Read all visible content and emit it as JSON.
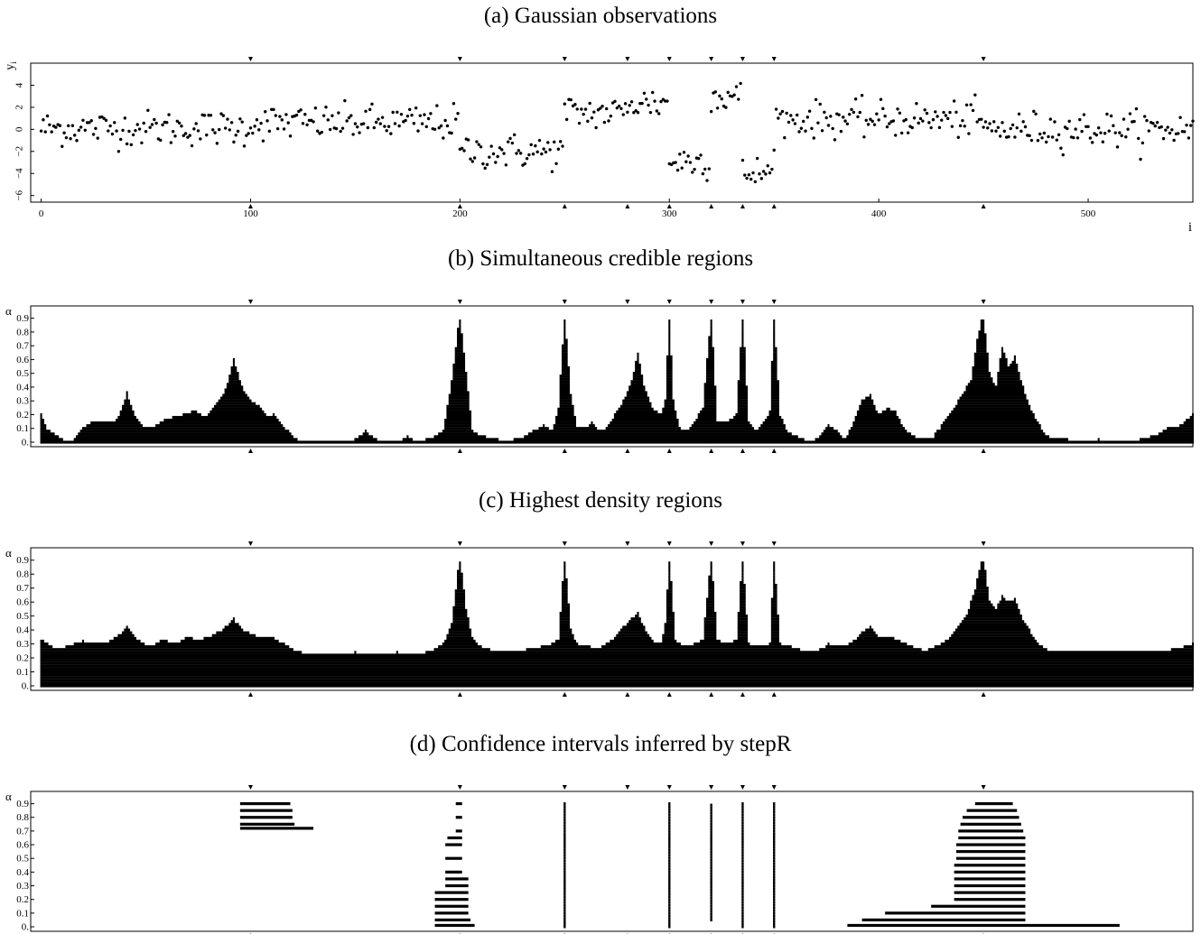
{
  "panels": {
    "a": {
      "title": "(a) Gaussian observations"
    },
    "b": {
      "title": "(b) Simultaneous credible regions"
    },
    "c": {
      "title": "(c) Highest density regions"
    },
    "d": {
      "title": "(d) Confidence intervals inferred by stepR"
    }
  },
  "chart_data": [
    {
      "id": "a",
      "type": "scatter",
      "title": "(a) Gaussian observations",
      "xlabel": "i",
      "ylabel": "y_i",
      "xlim": [
        -5,
        550
      ],
      "ylim": [
        -6.6,
        6.0
      ],
      "x_ticks": [
        0,
        100,
        200,
        300,
        400,
        500
      ],
      "y_ticks": [
        -6,
        -4,
        -2,
        0,
        2,
        4
      ],
      "change_points": [
        100,
        200,
        250,
        280,
        300,
        320,
        335,
        350,
        450
      ],
      "segments": [
        {
          "from": 0,
          "to": 100,
          "mean": 0.1
        },
        {
          "from": 100,
          "to": 200,
          "mean": 0.6
        },
        {
          "from": 200,
          "to": 250,
          "mean": -2.0
        },
        {
          "from": 250,
          "to": 280,
          "mean": 1.5
        },
        {
          "from": 280,
          "to": 300,
          "mean": 2.4
        },
        {
          "from": 300,
          "to": 320,
          "mean": -2.9
        },
        {
          "from": 320,
          "to": 335,
          "mean": 3.0
        },
        {
          "from": 335,
          "to": 350,
          "mean": -4.0
        },
        {
          "from": 350,
          "to": 450,
          "mean": 0.9
        },
        {
          "from": 450,
          "to": 551,
          "mean": 0.0
        }
      ],
      "noise_sd": 0.8,
      "n_points": 551
    },
    {
      "id": "b",
      "type": "bar",
      "title": "(b) Simultaneous credible regions",
      "xlabel": "",
      "ylabel": "α",
      "xlim": [
        -5,
        550
      ],
      "y_ticks": [
        0,
        0.1,
        0.2,
        0.3,
        0.4,
        0.5,
        0.6,
        0.7,
        0.8,
        0.9
      ],
      "change_points": [
        100,
        200,
        250,
        280,
        300,
        320,
        335,
        350,
        450
      ],
      "profile": [
        [
          0,
          0.2
        ],
        [
          3,
          0.1
        ],
        [
          7,
          0.05
        ],
        [
          10,
          0.02
        ],
        [
          15,
          0
        ],
        [
          20,
          0.1
        ],
        [
          25,
          0.15
        ],
        [
          30,
          0.15
        ],
        [
          35,
          0.15
        ],
        [
          38,
          0.22
        ],
        [
          41,
          0.36
        ],
        [
          44,
          0.22
        ],
        [
          48,
          0.12
        ],
        [
          53,
          0.1
        ],
        [
          57,
          0.15
        ],
        [
          63,
          0.18
        ],
        [
          68,
          0.2
        ],
        [
          73,
          0.23
        ],
        [
          78,
          0.18
        ],
        [
          83,
          0.27
        ],
        [
          88,
          0.38
        ],
        [
          92,
          0.6
        ],
        [
          96,
          0.4
        ],
        [
          100,
          0.3
        ],
        [
          104,
          0.26
        ],
        [
          108,
          0.18
        ],
        [
          111,
          0.2
        ],
        [
          115,
          0.12
        ],
        [
          118,
          0.08
        ],
        [
          122,
          0.02
        ],
        [
          126,
          0
        ],
        [
          140,
          0
        ],
        [
          150,
          0.02
        ],
        [
          155,
          0.08
        ],
        [
          160,
          0.02
        ],
        [
          170,
          0
        ],
        [
          175,
          0.04
        ],
        [
          180,
          0
        ],
        [
          188,
          0.04
        ],
        [
          192,
          0.08
        ],
        [
          196,
          0.45
        ],
        [
          200,
          0.95
        ],
        [
          203,
          0.5
        ],
        [
          206,
          0.08
        ],
        [
          210,
          0.05
        ],
        [
          214,
          0.03
        ],
        [
          218,
          0.02
        ],
        [
          222,
          0
        ],
        [
          226,
          0.02
        ],
        [
          230,
          0.03
        ],
        [
          235,
          0.08
        ],
        [
          240,
          0.12
        ],
        [
          244,
          0.08
        ],
        [
          247,
          0.25
        ],
        [
          250,
          0.95
        ],
        [
          253,
          0.35
        ],
        [
          256,
          0.1
        ],
        [
          260,
          0.1
        ],
        [
          263,
          0.15
        ],
        [
          266,
          0.08
        ],
        [
          270,
          0.1
        ],
        [
          274,
          0.2
        ],
        [
          278,
          0.3
        ],
        [
          282,
          0.45
        ],
        [
          285,
          0.65
        ],
        [
          288,
          0.4
        ],
        [
          292,
          0.25
        ],
        [
          296,
          0.2
        ],
        [
          298,
          0.3
        ],
        [
          300,
          0.95
        ],
        [
          302,
          0.3
        ],
        [
          305,
          0.1
        ],
        [
          308,
          0.08
        ],
        [
          312,
          0.15
        ],
        [
          316,
          0.25
        ],
        [
          320,
          0.95
        ],
        [
          323,
          0.15
        ],
        [
          328,
          0.15
        ],
        [
          332,
          0.2
        ],
        [
          335,
          0.95
        ],
        [
          338,
          0.15
        ],
        [
          342,
          0.08
        ],
        [
          345,
          0.15
        ],
        [
          348,
          0.22
        ],
        [
          350,
          0.95
        ],
        [
          353,
          0.2
        ],
        [
          356,
          0.08
        ],
        [
          360,
          0.05
        ],
        [
          364,
          0.02
        ],
        [
          368,
          0
        ],
        [
          372,
          0.05
        ],
        [
          376,
          0.12
        ],
        [
          380,
          0.08
        ],
        [
          384,
          0.02
        ],
        [
          388,
          0.15
        ],
        [
          392,
          0.3
        ],
        [
          396,
          0.35
        ],
        [
          400,
          0.2
        ],
        [
          404,
          0.25
        ],
        [
          408,
          0.22
        ],
        [
          412,
          0.1
        ],
        [
          416,
          0.05
        ],
        [
          420,
          0.02
        ],
        [
          425,
          0.02
        ],
        [
          430,
          0.12
        ],
        [
          436,
          0.25
        ],
        [
          440,
          0.35
        ],
        [
          444,
          0.45
        ],
        [
          447,
          0.75
        ],
        [
          450,
          0.95
        ],
        [
          453,
          0.5
        ],
        [
          456,
          0.4
        ],
        [
          459,
          0.7
        ],
        [
          462,
          0.55
        ],
        [
          465,
          0.62
        ],
        [
          468,
          0.45
        ],
        [
          471,
          0.3
        ],
        [
          474,
          0.2
        ],
        [
          477,
          0.12
        ],
        [
          480,
          0.05
        ],
        [
          484,
          0.02
        ],
        [
          490,
          0.02
        ],
        [
          495,
          0
        ],
        [
          505,
          0.02
        ],
        [
          510,
          0
        ],
        [
          525,
          0.02
        ],
        [
          532,
          0.05
        ],
        [
          538,
          0.1
        ],
        [
          544,
          0.12
        ],
        [
          550,
          0.2
        ]
      ]
    },
    {
      "id": "c",
      "type": "bar",
      "title": "(c) Highest density regions",
      "xlabel": "",
      "ylabel": "α",
      "xlim": [
        -5,
        550
      ],
      "y_ticks": [
        0,
        0.1,
        0.2,
        0.3,
        0.4,
        0.5,
        0.6,
        0.7,
        0.8,
        0.9
      ],
      "change_points": [
        100,
        200,
        250,
        280,
        300,
        320,
        335,
        350,
        450
      ],
      "base_level": 0.23,
      "profile": [
        [
          0,
          0.33
        ],
        [
          3,
          0.3
        ],
        [
          8,
          0.26
        ],
        [
          20,
          0.32
        ],
        [
          30,
          0.3
        ],
        [
          36,
          0.35
        ],
        [
          41,
          0.42
        ],
        [
          46,
          0.33
        ],
        [
          52,
          0.28
        ],
        [
          58,
          0.33
        ],
        [
          64,
          0.3
        ],
        [
          70,
          0.35
        ],
        [
          76,
          0.33
        ],
        [
          82,
          0.36
        ],
        [
          88,
          0.42
        ],
        [
          92,
          0.48
        ],
        [
          96,
          0.4
        ],
        [
          104,
          0.35
        ],
        [
          110,
          0.35
        ],
        [
          116,
          0.3
        ],
        [
          120,
          0.26
        ],
        [
          124,
          0.24
        ],
        [
          134,
          0.22
        ],
        [
          150,
          0.24
        ],
        [
          160,
          0.22
        ],
        [
          170,
          0.24
        ],
        [
          178,
          0.22
        ],
        [
          186,
          0.25
        ],
        [
          192,
          0.3
        ],
        [
          196,
          0.45
        ],
        [
          200,
          0.95
        ],
        [
          203,
          0.55
        ],
        [
          206,
          0.35
        ],
        [
          210,
          0.28
        ],
        [
          216,
          0.25
        ],
        [
          222,
          0.24
        ],
        [
          236,
          0.27
        ],
        [
          244,
          0.3
        ],
        [
          247,
          0.33
        ],
        [
          250,
          0.95
        ],
        [
          253,
          0.4
        ],
        [
          256,
          0.3
        ],
        [
          262,
          0.28
        ],
        [
          266,
          0.27
        ],
        [
          270,
          0.3
        ],
        [
          274,
          0.35
        ],
        [
          278,
          0.42
        ],
        [
          282,
          0.48
        ],
        [
          285,
          0.52
        ],
        [
          288,
          0.42
        ],
        [
          292,
          0.32
        ],
        [
          296,
          0.3
        ],
        [
          298,
          0.45
        ],
        [
          300,
          0.95
        ],
        [
          303,
          0.32
        ],
        [
          308,
          0.28
        ],
        [
          312,
          0.3
        ],
        [
          316,
          0.33
        ],
        [
          320,
          0.95
        ],
        [
          323,
          0.33
        ],
        [
          328,
          0.3
        ],
        [
          332,
          0.33
        ],
        [
          335,
          0.95
        ],
        [
          338,
          0.3
        ],
        [
          344,
          0.28
        ],
        [
          348,
          0.3
        ],
        [
          350,
          0.95
        ],
        [
          353,
          0.3
        ],
        [
          358,
          0.28
        ],
        [
          364,
          0.25
        ],
        [
          370,
          0.24
        ],
        [
          376,
          0.3
        ],
        [
          380,
          0.28
        ],
        [
          386,
          0.3
        ],
        [
          392,
          0.38
        ],
        [
          396,
          0.42
        ],
        [
          400,
          0.35
        ],
        [
          406,
          0.35
        ],
        [
          410,
          0.32
        ],
        [
          416,
          0.28
        ],
        [
          422,
          0.25
        ],
        [
          430,
          0.3
        ],
        [
          436,
          0.38
        ],
        [
          442,
          0.5
        ],
        [
          446,
          0.7
        ],
        [
          450,
          0.95
        ],
        [
          453,
          0.6
        ],
        [
          456,
          0.55
        ],
        [
          459,
          0.65
        ],
        [
          462,
          0.6
        ],
        [
          465,
          0.62
        ],
        [
          468,
          0.5
        ],
        [
          472,
          0.4
        ],
        [
          476,
          0.3
        ],
        [
          480,
          0.26
        ],
        [
          484,
          0.24
        ],
        [
          540,
          0.26
        ],
        [
          546,
          0.28
        ],
        [
          550,
          0.3
        ]
      ]
    },
    {
      "id": "d",
      "type": "bar",
      "title": "(d) Confidence intervals inferred by stepR",
      "xlabel": "",
      "ylabel": "α",
      "xlim": [
        -5,
        550
      ],
      "y_ticks": [
        0,
        0.1,
        0.2,
        0.3,
        0.4,
        0.5,
        0.6,
        0.7,
        0.8,
        0.9
      ],
      "change_points": [
        100,
        200,
        250,
        280,
        300,
        320,
        335,
        350,
        450
      ],
      "dotted_columns": [
        {
          "x": 250,
          "from": 0,
          "to": 0.9
        },
        {
          "x": 300,
          "from": 0,
          "to": 0.9
        },
        {
          "x": 320,
          "from": 0.05,
          "to": 0.9
        },
        {
          "x": 335,
          "from": 0,
          "to": 0.9
        },
        {
          "x": 350,
          "from": 0,
          "to": 0.9
        }
      ],
      "intervals": [
        {
          "alpha": 0.9,
          "from": 95,
          "to": 119
        },
        {
          "alpha": 0.85,
          "from": 95,
          "to": 120
        },
        {
          "alpha": 0.8,
          "from": 95,
          "to": 120
        },
        {
          "alpha": 0.75,
          "from": 95,
          "to": 121
        },
        {
          "alpha": 0.72,
          "from": 95,
          "to": 130
        },
        {
          "alpha": 0.9,
          "from": 198,
          "to": 201
        },
        {
          "alpha": 0.8,
          "from": 198,
          "to": 201
        },
        {
          "alpha": 0.7,
          "from": 198,
          "to": 201
        },
        {
          "alpha": 0.65,
          "from": 194,
          "to": 201
        },
        {
          "alpha": 0.6,
          "from": 193,
          "to": 201
        },
        {
          "alpha": 0.5,
          "from": 193,
          "to": 201
        },
        {
          "alpha": 0.4,
          "from": 193,
          "to": 201
        },
        {
          "alpha": 0.35,
          "from": 193,
          "to": 204
        },
        {
          "alpha": 0.3,
          "from": 193,
          "to": 204
        },
        {
          "alpha": 0.25,
          "from": 188,
          "to": 204
        },
        {
          "alpha": 0.2,
          "from": 188,
          "to": 204
        },
        {
          "alpha": 0.15,
          "from": 188,
          "to": 204
        },
        {
          "alpha": 0.1,
          "from": 188,
          "to": 204
        },
        {
          "alpha": 0.05,
          "from": 188,
          "to": 205
        },
        {
          "alpha": 0.01,
          "from": 188,
          "to": 207
        },
        {
          "alpha": 0.9,
          "from": 446,
          "to": 464
        },
        {
          "alpha": 0.85,
          "from": 442,
          "to": 466
        },
        {
          "alpha": 0.8,
          "from": 440,
          "to": 467
        },
        {
          "alpha": 0.75,
          "from": 439,
          "to": 468
        },
        {
          "alpha": 0.7,
          "from": 438,
          "to": 469
        },
        {
          "alpha": 0.65,
          "from": 438,
          "to": 470
        },
        {
          "alpha": 0.6,
          "from": 437,
          "to": 470
        },
        {
          "alpha": 0.55,
          "from": 437,
          "to": 470
        },
        {
          "alpha": 0.5,
          "from": 437,
          "to": 470
        },
        {
          "alpha": 0.45,
          "from": 436,
          "to": 470
        },
        {
          "alpha": 0.4,
          "from": 436,
          "to": 470
        },
        {
          "alpha": 0.35,
          "from": 436,
          "to": 470
        },
        {
          "alpha": 0.3,
          "from": 436,
          "to": 470
        },
        {
          "alpha": 0.25,
          "from": 436,
          "to": 470
        },
        {
          "alpha": 0.2,
          "from": 436,
          "to": 470
        },
        {
          "alpha": 0.15,
          "from": 425,
          "to": 470
        },
        {
          "alpha": 0.1,
          "from": 403,
          "to": 470
        },
        {
          "alpha": 0.05,
          "from": 392,
          "to": 470
        },
        {
          "alpha": 0.01,
          "from": 385,
          "to": 515
        }
      ]
    }
  ]
}
